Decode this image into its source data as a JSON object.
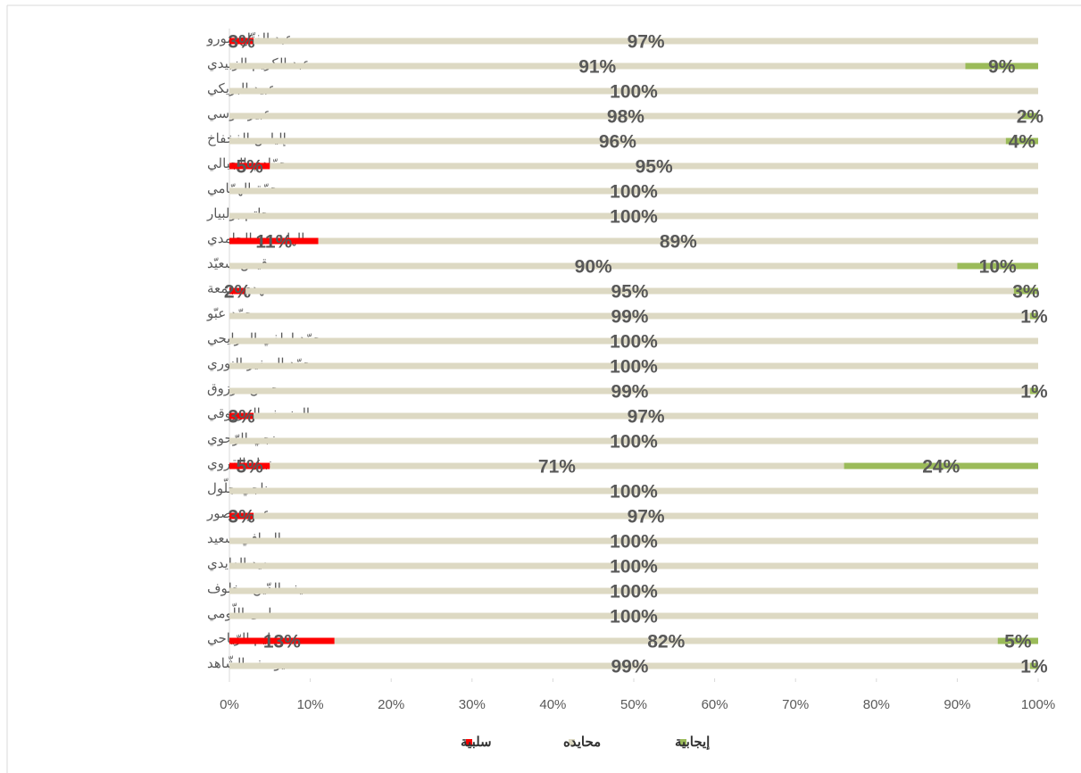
{
  "chart_data": {
    "type": "stacked-barh",
    "categories": [
      "عبد الفتّاح مورو",
      "عبد الكريم الزبيدي",
      "عبيد البريكي",
      "عبير موسي",
      "إلياس الفخفاخ",
      "حمّادي الجبالي",
      "حمّة الهمّامي",
      "حاتم بولبيار",
      "الهاشمي الحامدي",
      "قيس سعيّد",
      "مهدي جمعة",
      "محمّد عبّو",
      "محمّد لطفي المرايحي",
      "محمّد الصغير النوري",
      "محسن مرزوق",
      "المنصف المرزوقي",
      "منجي الرّحوي",
      "نبيل القروي",
      "ناجي جلّول",
      "عمر منصور",
      "الصافي سعيد",
      "سعيد العايدي",
      "سيف الدّين مخلوف",
      "سلمى اللّومي",
      "سليم الرّياحي",
      "يوسف الشّاهد"
    ],
    "series": [
      {
        "name": "سلبية",
        "color": "#ff0000",
        "values": [
          3,
          0,
          0,
          0,
          0,
          5,
          0,
          0,
          11,
          0,
          2,
          0,
          0,
          0,
          0,
          3,
          0,
          5,
          0,
          3,
          0,
          0,
          0,
          0,
          13,
          0
        ],
        "value_labels": [
          "3%",
          null,
          null,
          null,
          null,
          "5%",
          null,
          null,
          "11%",
          null,
          "2%",
          null,
          null,
          null,
          null,
          "3%",
          null,
          "5%",
          null,
          "3%",
          null,
          null,
          null,
          null,
          "13%",
          null
        ]
      },
      {
        "name": "محايده",
        "color": "#ddd9c3",
        "values": [
          97,
          91,
          100,
          98,
          96,
          95,
          100,
          100,
          89,
          90,
          95,
          99,
          100,
          100,
          99,
          97,
          100,
          71,
          100,
          97,
          100,
          100,
          100,
          100,
          82,
          99
        ],
        "value_labels": [
          "97%",
          "91%",
          "100%",
          "98%",
          "96%",
          "95%",
          "100%",
          "100%",
          "89%",
          "90%",
          "95%",
          "99%",
          "100%",
          "100%",
          "99%",
          "97%",
          "100%",
          "71%",
          "100%",
          "97%",
          "100%",
          "100%",
          "100%",
          "100%",
          "82%",
          "99%"
        ]
      },
      {
        "name": "إيجابية",
        "color": "#9bbb59",
        "values": [
          0,
          9,
          0,
          2,
          4,
          0,
          0,
          0,
          0,
          10,
          3,
          1,
          0,
          0,
          1,
          0,
          0,
          24,
          0,
          0,
          0,
          0,
          0,
          0,
          5,
          1
        ],
        "value_labels": [
          null,
          "9%",
          null,
          "2%",
          "4%",
          null,
          null,
          null,
          null,
          "10%",
          "3%",
          "1%",
          null,
          null,
          "1%",
          null,
          null,
          "24%",
          null,
          null,
          null,
          null,
          null,
          null,
          "5%",
          "1%"
        ]
      }
    ],
    "xlim": [
      0,
      100
    ],
    "xticks": [
      {
        "value": 0,
        "label": "0%"
      },
      {
        "value": 10,
        "label": "10%"
      },
      {
        "value": 20,
        "label": "20%"
      },
      {
        "value": 30,
        "label": "30%"
      },
      {
        "value": 40,
        "label": "40%"
      },
      {
        "value": 50,
        "label": "50%"
      },
      {
        "value": 60,
        "label": "60%"
      },
      {
        "value": 70,
        "label": "70%"
      },
      {
        "value": 80,
        "label": "80%"
      },
      {
        "value": 90,
        "label": "90%"
      },
      {
        "value": 100,
        "label": "100%"
      }
    ],
    "legend": "bottom"
  }
}
